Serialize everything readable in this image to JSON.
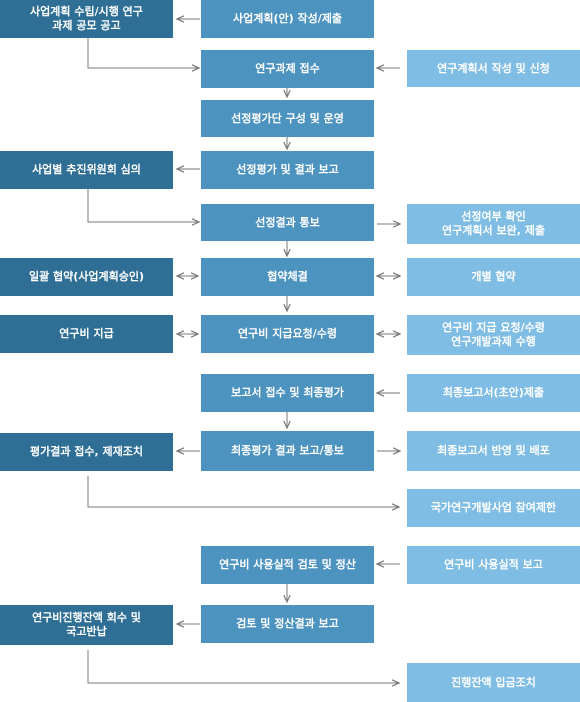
{
  "colors": {
    "dark": "#2f6f96",
    "mid": "#4d93c0",
    "light": "#7fbde4",
    "arrow": "#7a7a7a"
  },
  "left": {
    "notice": "사업계획 수립/시행 연구\n과제 공모 공고",
    "committee": "사업별 추진위원회 심의",
    "bulk_agreement": "일괄 협약(사업계획승인)",
    "fund_payment": "연구비 지급",
    "eval_followup": "평가결과 접수, 제재조치",
    "recovery": "연구비진행잔액 회수 및\n국고반납"
  },
  "center": {
    "plan_submit": "사업계획(안) 작성/제출",
    "receive": "연구과제 접수",
    "panel": "선정평가단 구성 및 운영",
    "selection_report": "선정평가 및 결과 보고",
    "result_notice": "선정결과 통보",
    "contract": "협약체결",
    "fund_request": "연구비 지급요청/수령",
    "final_eval": "보고서 접수 및 최종평가",
    "final_report": "최종평가 결과 보고/통보",
    "settlement_review": "연구비 사용실적 검토 및 정산",
    "settlement_report": "검토 및 정산결과 보고"
  },
  "right": {
    "proposal": "연구계획서 작성 및 신청",
    "revision": "선정여부 확인\n연구계획서 보완, 제출",
    "individual_agreement": "개별 협약",
    "fund_execute": "연구비 지급 요청/수령\n연구개발과제 수행",
    "final_submit": "최종보고서(초안)제출",
    "distribution": "최종보고서 반영 및 배포",
    "restriction": "국가연구개발사업 참여제한",
    "usage_report": "연구비 사용실적 보고",
    "refund": "진행잔액 입금조치"
  }
}
